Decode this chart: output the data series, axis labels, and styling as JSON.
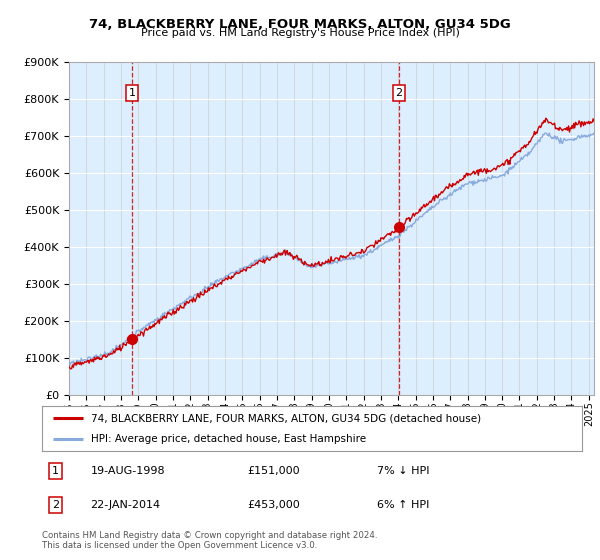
{
  "title": "74, BLACKBERRY LANE, FOUR MARKS, ALTON, GU34 5DG",
  "subtitle": "Price paid vs. HM Land Registry's House Price Index (HPI)",
  "legend_label1": "74, BLACKBERRY LANE, FOUR MARKS, ALTON, GU34 5DG (detached house)",
  "legend_label2": "HPI: Average price, detached house, East Hampshire",
  "sale1_date": "19-AUG-1998",
  "sale1_price": 151000,
  "sale1_pct": "7% ↓ HPI",
  "sale2_date": "22-JAN-2014",
  "sale2_price": 453000,
  "sale2_pct": "6% ↑ HPI",
  "footnote": "Contains HM Land Registry data © Crown copyright and database right 2024.\nThis data is licensed under the Open Government Licence v3.0.",
  "line_color_property": "#cc0000",
  "line_color_hpi": "#88aadd",
  "marker_color": "#cc0000",
  "bg_color": "#ddeeff",
  "ylim": [
    0,
    900000
  ],
  "yticks": [
    0,
    100000,
    200000,
    300000,
    400000,
    500000,
    600000,
    700000,
    800000,
    900000
  ],
  "sale1_year": 1998.63,
  "sale2_year": 2014.05,
  "xmin": 1995,
  "xmax": 2025.3
}
